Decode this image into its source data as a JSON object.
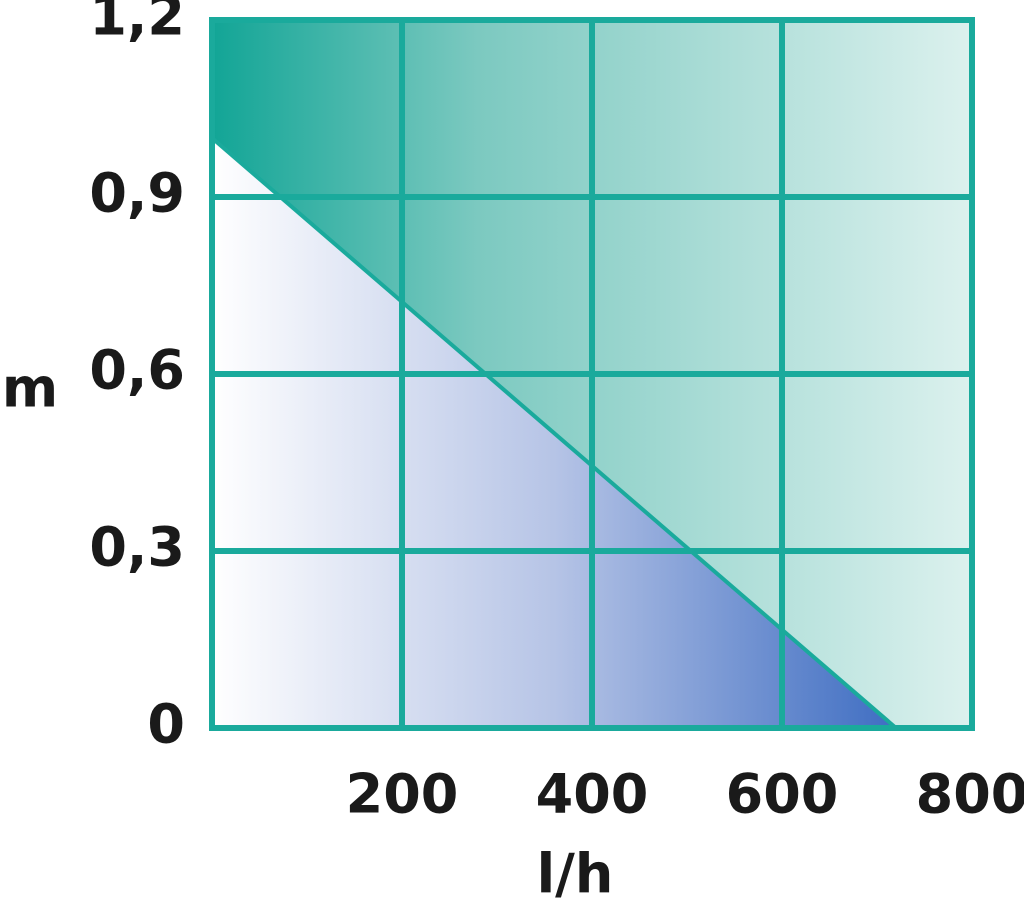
{
  "chart_data": {
    "type": "area",
    "x": [
      0,
      720
    ],
    "values": [
      1.0,
      0
    ],
    "xlim": [
      0,
      800
    ],
    "ylim": [
      0,
      1.2
    ],
    "xticks": [
      200,
      400,
      600,
      800
    ],
    "yticks": [
      0,
      {
        "value": 0.3,
        "label": "0,3"
      },
      {
        "value": 0.6,
        "label": "0,6"
      },
      {
        "value": 0.9,
        "label": "0,9"
      },
      {
        "value": 1.2,
        "label": "1,2"
      }
    ],
    "x_label": "l/h",
    "y_label": "m",
    "color": "#1aaa9c",
    "grid": true
  }
}
